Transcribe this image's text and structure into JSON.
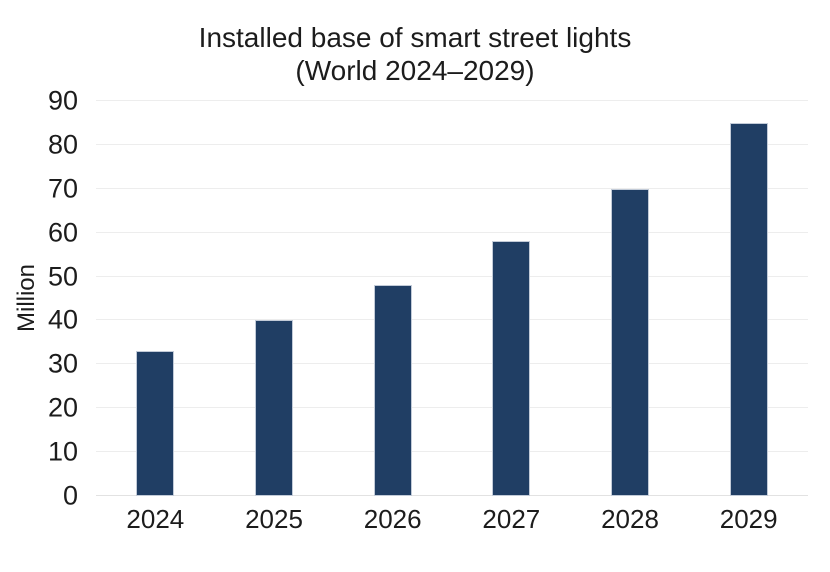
{
  "figure": {
    "title_line1": "Installed base of smart street lights",
    "title_line2": "(World 2024–2029)"
  },
  "chart_data": {
    "type": "bar",
    "title": "Installed base of smart street lights (World 2024–2029)",
    "categories": [
      "2024",
      "2025",
      "2026",
      "2027",
      "2028",
      "2029"
    ],
    "values": [
      33,
      40,
      48,
      58,
      70,
      85
    ],
    "xlabel": "",
    "ylabel": "Million",
    "ylim": [
      0,
      90
    ],
    "yticks": [
      0,
      10,
      20,
      30,
      40,
      50,
      60,
      70,
      80,
      90
    ],
    "grid": "horizontal-only",
    "legend": "none",
    "colors": {
      "bar_fill": "#203e64",
      "bar_border": "#c2cbd8",
      "gridline": "#ededed",
      "baseline": "#e2e2e2",
      "text": "#1c1c1c",
      "background": "#ffffff"
    }
  }
}
